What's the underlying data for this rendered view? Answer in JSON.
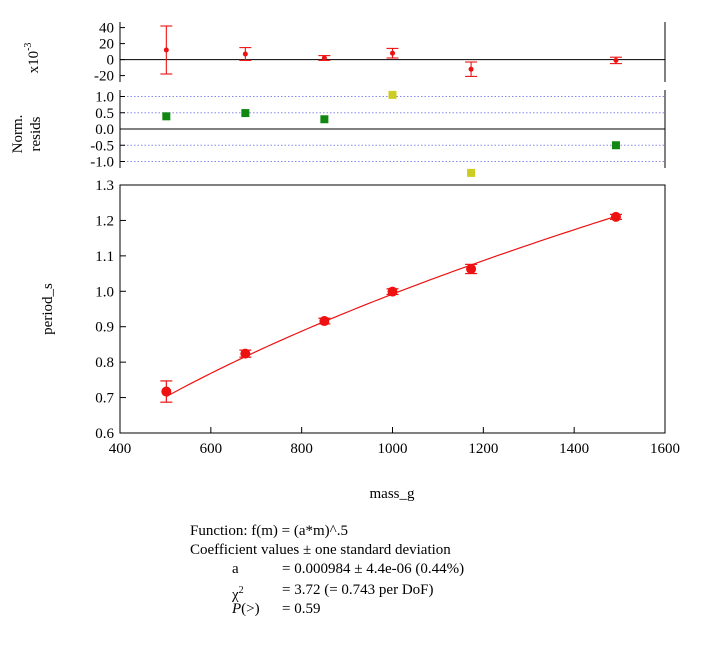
{
  "chart_data": {
    "type": "scatter",
    "xlabel": "mass_g",
    "ylabel": "period_s",
    "xlim": [
      400,
      1600
    ],
    "ylim": [
      0.6,
      1.3
    ],
    "x_ticks": [
      "400",
      "600",
      "800",
      "1000",
      "1200",
      "1400",
      "1600"
    ],
    "y_ticks": [
      "0.6",
      "0.7",
      "0.8",
      "0.9",
      "1.0",
      "1.1",
      "1.2",
      "1.3"
    ],
    "points": [
      {
        "x": 502,
        "y": 0.717,
        "err": 0.03
      },
      {
        "x": 676,
        "y": 0.824,
        "err": 0.01
      },
      {
        "x": 850,
        "y": 0.916,
        "err": 0.008
      },
      {
        "x": 1000,
        "y": 0.999,
        "err": 0.008
      },
      {
        "x": 1173,
        "y": 1.063,
        "err": 0.013
      },
      {
        "x": 1492,
        "y": 1.21,
        "err": 0.007
      }
    ],
    "fit": {
      "model": "sqrt",
      "a": 0.000984
    },
    "residuals": {
      "ylabel": "x10",
      "ylabel_exp": "-3",
      "ylim": [
        -28,
        47
      ],
      "y_ticks": [
        "40",
        "20",
        "0",
        "-20"
      ],
      "tick_values": [
        40,
        20,
        0,
        -20
      ],
      "points": [
        {
          "x": 502,
          "y": 12,
          "err": 30
        },
        {
          "x": 676,
          "y": 7,
          "err": 8
        },
        {
          "x": 850,
          "y": 2,
          "err": 3
        },
        {
          "x": 1000,
          "y": 8,
          "err": 6
        },
        {
          "x": 1173,
          "y": -12,
          "err": 9
        },
        {
          "x": 1492,
          "y": -1,
          "err": 4
        }
      ]
    },
    "normalized_residuals": {
      "ylabel_line1": "Norm.",
      "ylabel_line2": "resids",
      "ylim": [
        -1.2,
        1.2
      ],
      "y_ticks": [
        "1.0",
        "0.5",
        "0.0",
        "-0.5",
        "-1.0"
      ],
      "tick_values": [
        1.0,
        0.5,
        0.0,
        -0.5,
        -1.0
      ],
      "points": [
        {
          "x": 502,
          "y": 0.39,
          "color": "#118811"
        },
        {
          "x": 676,
          "y": 0.49,
          "color": "#118811"
        },
        {
          "x": 850,
          "y": 0.3,
          "color": "#118811"
        },
        {
          "x": 1000,
          "y": 1.05,
          "color": "#cccc22"
        },
        {
          "x": 1173,
          "y": -1.35,
          "color": "#cccc22"
        },
        {
          "x": 1492,
          "y": -0.5,
          "color": "#118811"
        }
      ]
    },
    "colors": {
      "data": "#ee1111",
      "reference_line": "#8888ee"
    }
  },
  "fit_info": {
    "function": "Function: f(m) = (a*m)^.5",
    "coef_header": "Coefficient values ± one standard deviation",
    "a_label": "a",
    "a_value": "= 0.000984 ± 4.4e-06  (0.44%)",
    "chi_label": "χ",
    "chi_sup": "2",
    "chi_value": "= 3.72 (= 0.743 per DoF)",
    "p_label": "P",
    "p_suffix": "(>)",
    "p_value": "= 0.59"
  }
}
